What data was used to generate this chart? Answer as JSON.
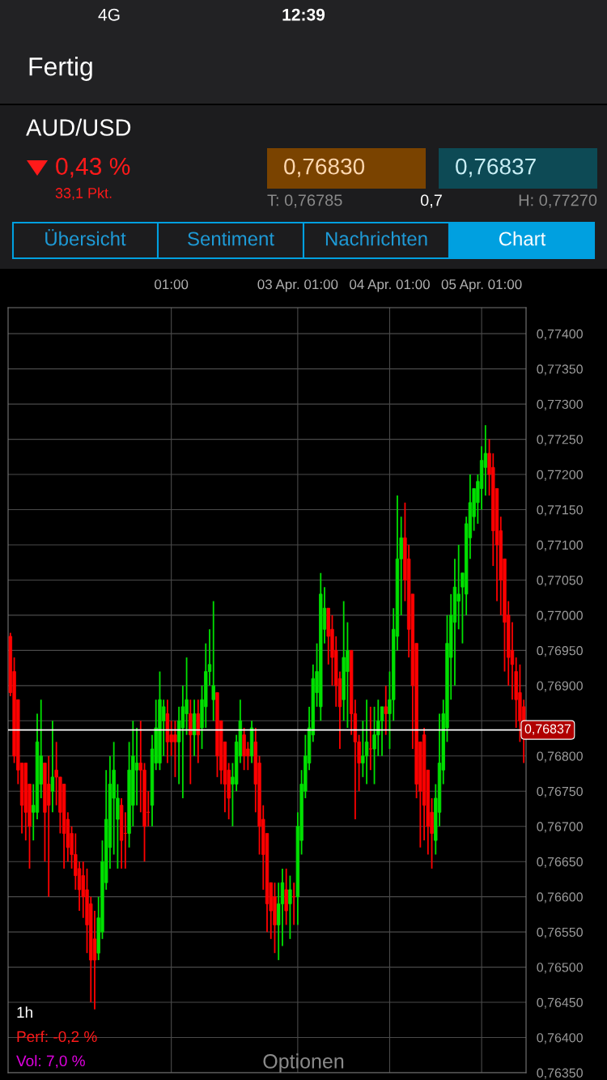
{
  "chart_data": {
    "type": "candlestick",
    "title": "AUD/USD",
    "categories": [
      null,
      null,
      null,
      null,
      null,
      null,
      null,
      null,
      null,
      null,
      null,
      null,
      null,
      null,
      null,
      null,
      null,
      null,
      null,
      null,
      null,
      null,
      null,
      null,
      null,
      null,
      null,
      null,
      null,
      null,
      null,
      null,
      null,
      null,
      null,
      null,
      null,
      null,
      null,
      null,
      null,
      null,
      "01:00",
      null,
      null,
      null,
      null,
      null,
      null,
      null,
      null,
      null,
      null,
      null,
      null,
      null,
      null,
      null,
      null,
      null,
      null,
      null,
      null,
      null,
      null,
      null,
      null,
      null,
      null,
      null,
      null,
      null,
      null,
      null,
      null,
      "03 Apr. 01:00",
      null,
      null,
      null,
      null,
      null,
      null,
      null,
      null,
      null,
      null,
      null,
      null,
      null,
      null,
      null,
      null,
      null,
      null,
      null,
      null,
      null,
      null,
      null,
      "04 Apr. 01:00",
      null,
      null,
      null,
      null,
      null,
      null,
      null,
      null,
      null,
      null,
      null,
      null,
      null,
      null,
      null,
      null,
      null,
      null,
      null,
      null,
      null,
      null,
      null,
      "05 Apr. 01:00",
      null,
      null,
      null,
      null,
      null,
      null,
      null,
      null,
      null,
      null,
      null
    ],
    "ohlc": [
      [
        0.7697,
        0.76975,
        0.76885,
        0.7689
      ],
      [
        0.7692,
        0.7694,
        0.7679,
        0.768
      ],
      [
        0.7688,
        0.7688,
        0.7676,
        0.7678
      ],
      [
        0.7679,
        0.7679,
        0.7669,
        0.7673
      ],
      [
        0.7679,
        0.7679,
        0.7668,
        0.7672
      ],
      [
        0.7676,
        0.7676,
        0.7664,
        0.767
      ],
      [
        0.7672,
        0.7676,
        0.7668,
        0.7673
      ],
      [
        0.7672,
        0.7686,
        0.7671,
        0.7682
      ],
      [
        0.7676,
        0.7688,
        0.7674,
        0.768
      ],
      [
        0.7679,
        0.7679,
        0.7665,
        0.7672
      ],
      [
        0.7676,
        0.768,
        0.766,
        0.7673
      ],
      [
        0.7675,
        0.7685,
        0.7672,
        0.7677
      ],
      [
        0.7678,
        0.7682,
        0.7673,
        0.7677
      ],
      [
        0.7677,
        0.7677,
        0.7669,
        0.7672
      ],
      [
        0.7676,
        0.7676,
        0.7664,
        0.7669
      ],
      [
        0.7671,
        0.7672,
        0.7665,
        0.7667
      ],
      [
        0.7669,
        0.767,
        0.7664,
        0.7666
      ],
      [
        0.7666,
        0.7669,
        0.7661,
        0.7663
      ],
      [
        0.7664,
        0.7665,
        0.7658,
        0.7661
      ],
      [
        0.7663,
        0.7665,
        0.7657,
        0.766
      ],
      [
        0.7661,
        0.7664,
        0.7652,
        0.7656
      ],
      [
        0.7659,
        0.766,
        0.7645,
        0.7651
      ],
      [
        0.7654,
        0.7658,
        0.7644,
        0.7651
      ],
      [
        0.7652,
        0.766,
        0.7651,
        0.7657
      ],
      [
        0.7655,
        0.7668,
        0.7654,
        0.7665
      ],
      [
        0.7662,
        0.7678,
        0.7661,
        0.7671
      ],
      [
        0.7667,
        0.768,
        0.7664,
        0.7676
      ],
      [
        0.7674,
        0.7682,
        0.7666,
        0.7678
      ],
      [
        0.7671,
        0.7676,
        0.7664,
        0.7674
      ],
      [
        0.7673,
        0.7674,
        0.7664,
        0.7668
      ],
      [
        0.7669,
        0.7672,
        0.7664,
        0.7669
      ],
      [
        0.7669,
        0.7682,
        0.7667,
        0.7678
      ],
      [
        0.7673,
        0.7685,
        0.767,
        0.768
      ],
      [
        0.7678,
        0.7684,
        0.7673,
        0.7679
      ],
      [
        0.7679,
        0.7685,
        0.7672,
        0.7678
      ],
      [
        0.7678,
        0.7679,
        0.7665,
        0.767
      ],
      [
        0.7672,
        0.7675,
        0.767,
        0.7672
      ],
      [
        0.7673,
        0.7683,
        0.767,
        0.7681
      ],
      [
        0.7679,
        0.7688,
        0.7678,
        0.7684
      ],
      [
        0.7679,
        0.7692,
        0.7678,
        0.7688
      ],
      [
        0.7685,
        0.7688,
        0.768,
        0.7687
      ],
      [
        0.7686,
        0.7688,
        0.7679,
        0.7682
      ],
      [
        0.7683,
        0.7685,
        0.768,
        0.7682
      ],
      [
        0.7683,
        0.7685,
        0.7677,
        0.7682
      ],
      [
        0.7682,
        0.7687,
        0.7676,
        0.7685
      ],
      [
        0.7684,
        0.769,
        0.7674,
        0.7687
      ],
      [
        0.7686,
        0.7694,
        0.7683,
        0.7688
      ],
      [
        0.7686,
        0.7688,
        0.7676,
        0.7683
      ],
      [
        0.7683,
        0.7688,
        0.768,
        0.7686
      ],
      [
        0.7686,
        0.7688,
        0.7679,
        0.7683
      ],
      [
        0.7684,
        0.769,
        0.7681,
        0.7688
      ],
      [
        0.7687,
        0.7696,
        0.7684,
        0.7692
      ],
      [
        0.7692,
        0.7698,
        0.769,
        0.7693
      ],
      [
        0.7688,
        0.7702,
        0.7685,
        0.769
      ],
      [
        0.7689,
        0.7689,
        0.7677,
        0.768
      ],
      [
        0.7685,
        0.7685,
        0.7676,
        0.7678
      ],
      [
        0.7682,
        0.7682,
        0.7672,
        0.7676
      ],
      [
        0.7678,
        0.7679,
        0.7671,
        0.7674
      ],
      [
        0.7676,
        0.7679,
        0.767,
        0.7677
      ],
      [
        0.7676,
        0.7683,
        0.7675,
        0.7682
      ],
      [
        0.768,
        0.7688,
        0.7679,
        0.7685
      ],
      [
        0.7683,
        0.7684,
        0.7678,
        0.768
      ],
      [
        0.7681,
        0.7682,
        0.7678,
        0.768
      ],
      [
        0.768,
        0.7685,
        0.7679,
        0.7684
      ],
      [
        0.7682,
        0.7684,
        0.7672,
        0.7676
      ],
      [
        0.7679,
        0.768,
        0.7666,
        0.767
      ],
      [
        0.7671,
        0.7673,
        0.7661,
        0.7666
      ],
      [
        0.7669,
        0.7669,
        0.7655,
        0.7659
      ],
      [
        0.7662,
        0.7662,
        0.7654,
        0.7658
      ],
      [
        0.766,
        0.7662,
        0.7652,
        0.7656
      ],
      [
        0.7656,
        0.7662,
        0.7651,
        0.7659
      ],
      [
        0.7659,
        0.7664,
        0.7653,
        0.7662
      ],
      [
        0.7661,
        0.7664,
        0.7656,
        0.7658
      ],
      [
        0.7659,
        0.7663,
        0.7654,
        0.7661
      ],
      [
        0.766,
        0.7662,
        0.7656,
        0.766
      ],
      [
        0.766,
        0.7672,
        0.7656,
        0.767
      ],
      [
        0.7668,
        0.7678,
        0.7666,
        0.7676
      ],
      [
        0.7675,
        0.7683,
        0.7674,
        0.768
      ],
      [
        0.7679,
        0.7687,
        0.7678,
        0.7684
      ],
      [
        0.7683,
        0.7693,
        0.7682,
        0.7691
      ],
      [
        0.7689,
        0.7696,
        0.7687,
        0.7692
      ],
      [
        0.7687,
        0.7706,
        0.7685,
        0.7703
      ],
      [
        0.7698,
        0.7704,
        0.7696,
        0.7701
      ],
      [
        0.7701,
        0.7701,
        0.7693,
        0.7697
      ],
      [
        0.7698,
        0.77,
        0.769,
        0.7694
      ],
      [
        0.7695,
        0.7697,
        0.7687,
        0.769
      ],
      [
        0.7691,
        0.7692,
        0.7681,
        0.7687
      ],
      [
        0.7688,
        0.7702,
        0.7685,
        0.7694
      ],
      [
        0.7692,
        0.7699,
        0.7684,
        0.7695
      ],
      [
        0.7695,
        0.7695,
        0.7683,
        0.7686
      ],
      [
        0.7686,
        0.7688,
        0.7671,
        0.7682
      ],
      [
        0.7682,
        0.7683,
        0.7675,
        0.7679
      ],
      [
        0.7679,
        0.7685,
        0.7677,
        0.768
      ],
      [
        0.768,
        0.7688,
        0.7676,
        0.7682
      ],
      [
        0.7681,
        0.7687,
        0.7678,
        0.7681
      ],
      [
        0.7681,
        0.7687,
        0.7676,
        0.7683
      ],
      [
        0.7683,
        0.7688,
        0.768,
        0.7685
      ],
      [
        0.7685,
        0.7687,
        0.768,
        0.7687
      ],
      [
        0.7687,
        0.769,
        0.7683,
        0.7686
      ],
      [
        0.7686,
        0.7692,
        0.7681,
        0.7688
      ],
      [
        0.7688,
        0.7701,
        0.7685,
        0.7698
      ],
      [
        0.7697,
        0.7717,
        0.7695,
        0.7708
      ],
      [
        0.7708,
        0.7714,
        0.77,
        0.7711
      ],
      [
        0.7711,
        0.7716,
        0.7702,
        0.7705
      ],
      [
        0.7708,
        0.771,
        0.7694,
        0.7698
      ],
      [
        0.7703,
        0.7703,
        0.7681,
        0.769
      ],
      [
        0.7696,
        0.7696,
        0.7674,
        0.7676
      ],
      [
        0.7682,
        0.7682,
        0.7667,
        0.7675
      ],
      [
        0.7683,
        0.7684,
        0.7668,
        0.7673
      ],
      [
        0.7678,
        0.7678,
        0.7666,
        0.767
      ],
      [
        0.7672,
        0.7674,
        0.7664,
        0.7669
      ],
      [
        0.7668,
        0.7676,
        0.7666,
        0.7674
      ],
      [
        0.7672,
        0.7686,
        0.767,
        0.7679
      ],
      [
        0.7678,
        0.7688,
        0.7676,
        0.7686
      ],
      [
        0.7684,
        0.77,
        0.7682,
        0.7696
      ],
      [
        0.7694,
        0.7703,
        0.7688,
        0.77
      ],
      [
        0.7699,
        0.7708,
        0.769,
        0.7704
      ],
      [
        0.7702,
        0.771,
        0.7698,
        0.7703
      ],
      [
        0.7704,
        0.7706,
        0.7696,
        0.7706
      ],
      [
        0.7703,
        0.7714,
        0.77,
        0.7713
      ],
      [
        0.7711,
        0.772,
        0.7708,
        0.7716
      ],
      [
        0.7714,
        0.7718,
        0.7712,
        0.7718
      ],
      [
        0.7716,
        0.772,
        0.7713,
        0.7719
      ],
      [
        0.7718,
        0.7724,
        0.7715,
        0.7722
      ],
      [
        0.7721,
        0.7727,
        0.7717,
        0.7723
      ],
      [
        0.7723,
        0.7725,
        0.7717,
        0.772
      ],
      [
        0.7721,
        0.7723,
        0.7707,
        0.7712
      ],
      [
        0.7718,
        0.7718,
        0.7702,
        0.771
      ],
      [
        0.7712,
        0.7714,
        0.77,
        0.7705
      ],
      [
        0.7708,
        0.7708,
        0.7692,
        0.7699
      ],
      [
        0.77,
        0.7702,
        0.769,
        0.7694
      ],
      [
        0.7695,
        0.7699,
        0.7688,
        0.7693
      ],
      [
        0.7692,
        0.7694,
        0.7684,
        0.7688
      ],
      [
        0.7689,
        0.7693,
        0.7682,
        0.7685
      ],
      [
        0.7687,
        0.7688,
        0.7679,
        0.76837
      ]
    ],
    "colors": [
      "#ff0000",
      "#ff0000",
      "#ff0000",
      "#ff0000",
      "#ff0000",
      "#ff0000",
      "#00e000",
      "#00e000",
      "#00e000",
      "#ff0000",
      "#ff0000",
      "#00e000",
      "#ff0000",
      "#ff0000",
      "#ff0000",
      "#ff0000",
      "#ff0000",
      "#ff0000",
      "#ff0000",
      "#ff0000",
      "#ff0000",
      "#ff0000",
      "#ff0000",
      "#00e000",
      "#00e000",
      "#00e000",
      "#00e000",
      "#00e000",
      "#00e000",
      "#ff0000",
      "#ff0000",
      "#00e000",
      "#00e000",
      "#00e000",
      "#ff0000",
      "#ff0000",
      "#ff0000",
      "#00e000",
      "#00e000",
      "#00e000",
      "#00e000",
      "#ff0000",
      "#ff0000",
      "#ff0000",
      "#00e000",
      "#00e000",
      "#00e000",
      "#ff0000",
      "#00e000",
      "#ff0000",
      "#00e000",
      "#00e000",
      "#00e000",
      "#00e000",
      "#ff0000",
      "#ff0000",
      "#ff0000",
      "#ff0000",
      "#00e000",
      "#00e000",
      "#00e000",
      "#ff0000",
      "#ff0000",
      "#00e000",
      "#ff0000",
      "#ff0000",
      "#ff0000",
      "#ff0000",
      "#ff0000",
      "#ff0000",
      "#00e000",
      "#00e000",
      "#ff0000",
      "#00e000",
      "#ff0000",
      "#00e000",
      "#00e000",
      "#00e000",
      "#00e000",
      "#00e000",
      "#00e000",
      "#00e000",
      "#00e000",
      "#ff0000",
      "#ff0000",
      "#ff0000",
      "#ff0000",
      "#00e000",
      "#00e000",
      "#ff0000",
      "#ff0000",
      "#ff0000",
      "#00e000",
      "#00e000",
      "#ff0000",
      "#00e000",
      "#00e000",
      "#00e000",
      "#ff0000",
      "#00e000",
      "#00e000",
      "#00e000",
      "#00e000",
      "#ff0000",
      "#ff0000",
      "#ff0000",
      "#ff0000",
      "#ff0000",
      "#ff0000",
      "#ff0000",
      "#ff0000",
      "#00e000",
      "#00e000",
      "#00e000",
      "#00e000",
      "#00e000",
      "#00e000",
      "#00e000",
      "#00e000",
      "#00e000",
      "#00e000",
      "#00e000",
      "#00e000",
      "#00e000",
      "#00e000",
      "#ff0000",
      "#ff0000",
      "#ff0000",
      "#ff0000",
      "#ff0000",
      "#ff0000",
      "#ff0000",
      "#ff0000",
      "#ff0000",
      "#ff0000"
    ],
    "ylim": [
      0.7635,
      0.77437
    ],
    "yticks": [
      {
        "value": 0.7635,
        "label": "0,76350"
      },
      {
        "value": 0.764,
        "label": "0,76400"
      },
      {
        "value": 0.7645,
        "label": "0,76450"
      },
      {
        "value": 0.765,
        "label": "0,76500"
      },
      {
        "value": 0.7655,
        "label": "0,76550"
      },
      {
        "value": 0.766,
        "label": "0,76600"
      },
      {
        "value": 0.7665,
        "label": "0,76650"
      },
      {
        "value": 0.767,
        "label": "0,76700"
      },
      {
        "value": 0.7675,
        "label": "0,76750"
      },
      {
        "value": 0.768,
        "label": "0,76800"
      },
      {
        "value": 0.7685,
        "label": null
      },
      {
        "value": 0.769,
        "label": "0,76900"
      },
      {
        "value": 0.7695,
        "label": "0,76950"
      },
      {
        "value": 0.77,
        "label": "0,77000"
      },
      {
        "value": 0.7705,
        "label": "0,77050"
      },
      {
        "value": 0.771,
        "label": "0,77100"
      },
      {
        "value": 0.7715,
        "label": "0,77150"
      },
      {
        "value": 0.772,
        "label": "0,77200"
      },
      {
        "value": 0.7725,
        "label": "0,77250"
      },
      {
        "value": 0.773,
        "label": "0,77300"
      },
      {
        "value": 0.7735,
        "label": "0,77350"
      },
      {
        "value": 0.774,
        "label": "0,77400"
      }
    ],
    "ref_lines": [
      {
        "axis": "y",
        "value": 0.76837,
        "label": "0,76837",
        "color": "#ffffff"
      }
    ],
    "grid": true,
    "annotations": [
      "12:39",
      "4G",
      "Fertig",
      "0,43 %",
      "33,1 Pkt.",
      "0,76830",
      "0,76837",
      "T: 0,76785",
      "0,7",
      "H: 0,77270",
      "Übersicht",
      "Sentiment",
      "Nachrichten",
      "Chart",
      "1h",
      "Perf: -0,2 %",
      "Vol: 7,0 %",
      "Optionen"
    ]
  }
}
